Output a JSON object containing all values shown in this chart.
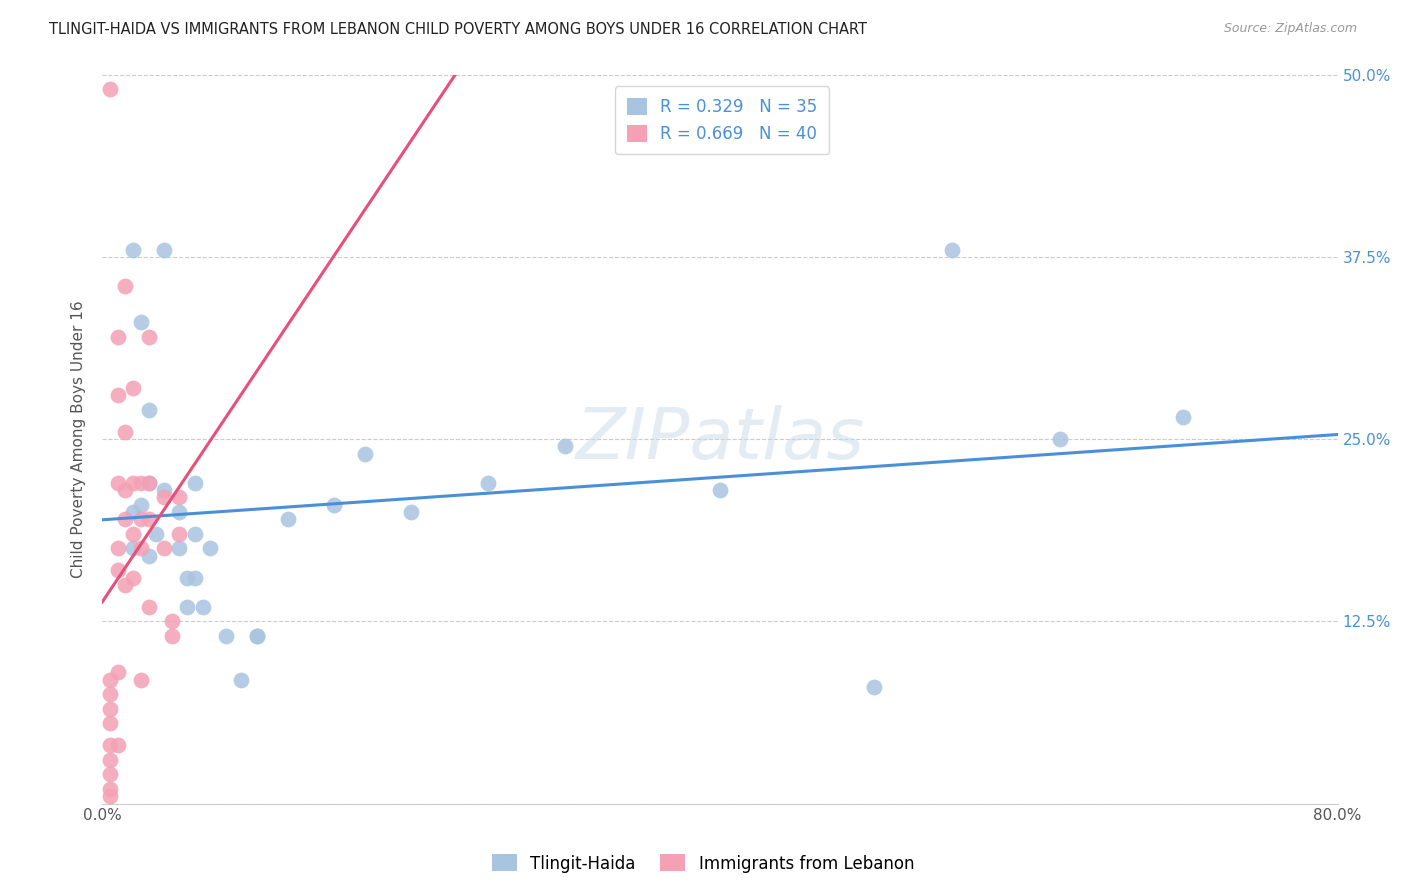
{
  "title": "TLINGIT-HAIDA VS IMMIGRANTS FROM LEBANON CHILD POVERTY AMONG BOYS UNDER 16 CORRELATION CHART",
  "source": "Source: ZipAtlas.com",
  "ylabel": "Child Poverty Among Boys Under 16",
  "watermark": "ZIPatlas",
  "legend1_label": "R = 0.329   N = 35",
  "legend2_label": "R = 0.669   N = 40",
  "series1_name": "Tlingit-Haida",
  "series2_name": "Immigrants from Lebanon",
  "xlim": [
    0.0,
    0.8
  ],
  "ylim": [
    0.0,
    0.5
  ],
  "xticks": [
    0.0,
    0.1,
    0.2,
    0.3,
    0.4,
    0.5,
    0.6,
    0.7,
    0.8
  ],
  "yticks": [
    0.0,
    0.125,
    0.25,
    0.375,
    0.5
  ],
  "xticklabels": [
    "0.0%",
    "",
    "",
    "",
    "",
    "",
    "",
    "",
    "80.0%"
  ],
  "yticklabels_right": [
    "",
    "12.5%",
    "25.0%",
    "37.5%",
    "50.0%"
  ],
  "color1": "#a8c4e0",
  "color2": "#f4a0b5",
  "line1_color": "#4a90d9",
  "line2_color": "#e8507a",
  "right_tick_color": "#4a90d9",
  "series1_x": [
    0.02,
    0.02,
    0.02,
    0.025,
    0.025,
    0.03,
    0.03,
    0.03,
    0.035,
    0.04,
    0.04,
    0.05,
    0.05,
    0.055,
    0.055,
    0.06,
    0.06,
    0.06,
    0.065,
    0.07,
    0.08,
    0.09,
    0.1,
    0.1,
    0.12,
    0.15,
    0.17,
    0.2,
    0.25,
    0.3,
    0.4,
    0.5,
    0.55,
    0.62,
    0.7
  ],
  "series1_y": [
    0.38,
    0.2,
    0.175,
    0.33,
    0.205,
    0.27,
    0.22,
    0.17,
    0.185,
    0.38,
    0.215,
    0.2,
    0.175,
    0.155,
    0.135,
    0.22,
    0.185,
    0.155,
    0.135,
    0.175,
    0.115,
    0.085,
    0.115,
    0.115,
    0.195,
    0.205,
    0.24,
    0.2,
    0.22,
    0.245,
    0.215,
    0.08,
    0.38,
    0.25,
    0.265
  ],
  "series2_x": [
    0.005,
    0.005,
    0.005,
    0.005,
    0.005,
    0.005,
    0.005,
    0.005,
    0.005,
    0.005,
    0.01,
    0.01,
    0.01,
    0.01,
    0.01,
    0.01,
    0.01,
    0.015,
    0.015,
    0.015,
    0.015,
    0.015,
    0.02,
    0.02,
    0.02,
    0.02,
    0.025,
    0.025,
    0.025,
    0.025,
    0.03,
    0.03,
    0.03,
    0.03,
    0.04,
    0.04,
    0.045,
    0.045,
    0.05,
    0.05
  ],
  "series2_y": [
    0.49,
    0.085,
    0.075,
    0.065,
    0.055,
    0.04,
    0.03,
    0.02,
    0.01,
    0.005,
    0.32,
    0.28,
    0.22,
    0.175,
    0.16,
    0.09,
    0.04,
    0.355,
    0.255,
    0.215,
    0.195,
    0.15,
    0.285,
    0.22,
    0.185,
    0.155,
    0.22,
    0.195,
    0.175,
    0.085,
    0.32,
    0.22,
    0.195,
    0.135,
    0.21,
    0.175,
    0.125,
    0.115,
    0.21,
    0.185
  ],
  "figsize": [
    14.06,
    8.92
  ],
  "dpi": 100
}
